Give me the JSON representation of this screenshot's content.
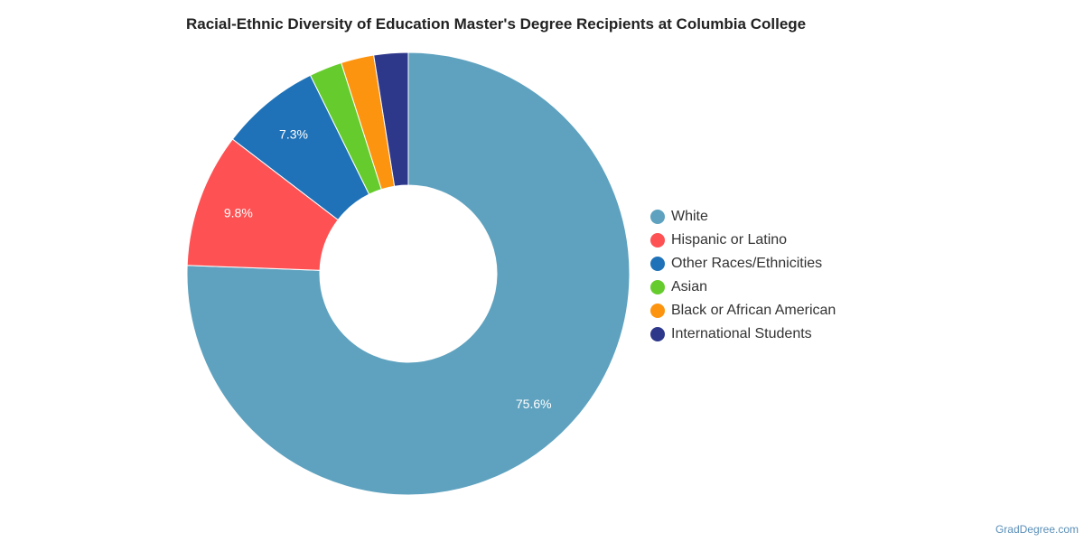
{
  "chart_data": {
    "type": "pie",
    "title": "Racial-Ethnic Diversity of Education Master's Degree Recipients at Columbia College",
    "donut": true,
    "legend_position": "right",
    "slices": [
      {
        "label": "White",
        "value": 75.6,
        "color": "#5ea2bf",
        "data_label": "75.6%"
      },
      {
        "label": "Hispanic or Latino",
        "value": 9.8,
        "color": "#fe5153",
        "data_label": "9.8%"
      },
      {
        "label": "Other Races/Ethnicities",
        "value": 7.3,
        "color": "#1f72b8",
        "data_label": "7.3%"
      },
      {
        "label": "Asian",
        "value": 2.4,
        "color": "#66cc2e",
        "data_label": ""
      },
      {
        "label": "Black or African American",
        "value": 2.4,
        "color": "#fd9410",
        "data_label": ""
      },
      {
        "label": "International Students",
        "value": 2.5,
        "color": "#2e388b",
        "data_label": ""
      }
    ]
  },
  "footer": {
    "source_link": "GradDegree.com"
  }
}
